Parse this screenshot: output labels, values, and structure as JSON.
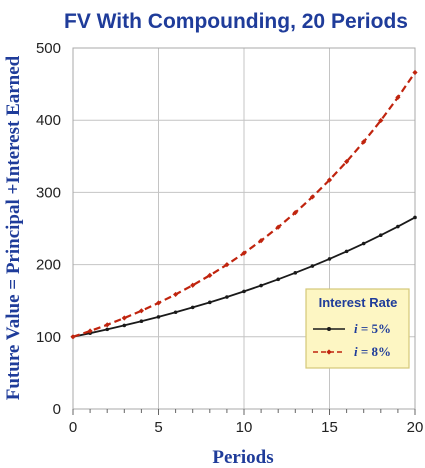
{
  "chart_data": {
    "type": "line",
    "title": "FV  With Compounding, 20 Periods",
    "xlabel": "Periods",
    "ylabel": "Future Value = Principal +Interest Earned",
    "xlim": [
      0,
      20
    ],
    "ylim": [
      0,
      500
    ],
    "x_ticks": [
      "0",
      "5",
      "10",
      "15",
      "20"
    ],
    "y_ticks": [
      "0",
      "100",
      "200",
      "300",
      "400",
      "500"
    ],
    "grid": true,
    "legend_placement": "bottom-right",
    "legend_title": "Interest Rate",
    "x": [
      0,
      1,
      2,
      3,
      4,
      5,
      6,
      7,
      8,
      9,
      10,
      11,
      12,
      13,
      14,
      15,
      16,
      17,
      18,
      19,
      20
    ],
    "series": [
      {
        "name": "i = 5%",
        "label_var": "i",
        "label_rest": " = 5%",
        "color": "#1a1a1a",
        "dash": "solid",
        "values": [
          100,
          105,
          110.3,
          115.8,
          121.6,
          127.6,
          134.0,
          140.7,
          147.7,
          155.1,
          162.9,
          171.0,
          179.6,
          188.6,
          198.0,
          207.9,
          218.3,
          229.2,
          240.7,
          252.7,
          265.3
        ]
      },
      {
        "name": "i = 8%",
        "label_var": "i",
        "label_rest": " = 8%",
        "color": "#c0240e",
        "dash": "dashed",
        "values": [
          100,
          108,
          116.6,
          126.0,
          136.0,
          146.9,
          158.7,
          171.4,
          185.1,
          199.9,
          215.9,
          233.2,
          251.8,
          272.0,
          293.7,
          317.2,
          342.6,
          370.0,
          399.6,
          431.6,
          466.1
        ]
      }
    ],
    "legend_bg": "#fdf6c3",
    "legend_border": "#d4c878",
    "grid_color": "#c4c4c4",
    "text_color": "#1f3c9a"
  }
}
